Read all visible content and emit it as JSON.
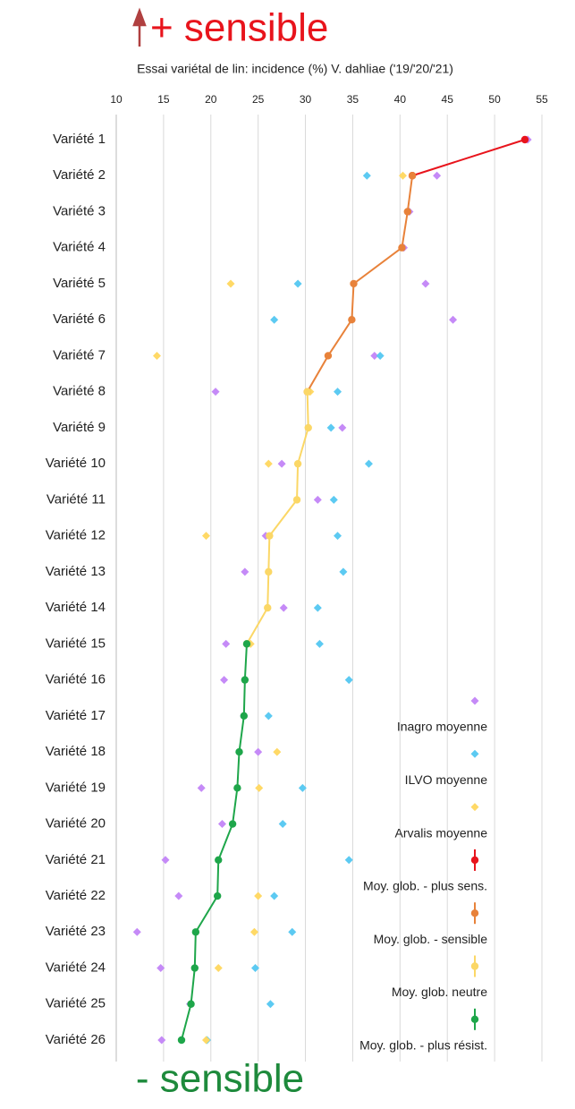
{
  "chart_data": {
    "type": "dot",
    "title_top": "+ sensible",
    "title": "Essai variétal de lin: incidence (%) V. dahliae ('19/'20/'21)",
    "title_bottom": "- sensible",
    "categories": [
      "Variété 1",
      "Variété 2",
      "Variété 3",
      "Variété 4",
      "Variété 5",
      "Variété 6",
      "Variété 7",
      "Variété 8",
      "Variété 9",
      "Variété 10",
      "Variété 11",
      "Variété 12",
      "Variété 13",
      "Variété 14",
      "Variété 15",
      "Variété 16",
      "Variété 17",
      "Variété 18",
      "Variété 19",
      "Variété 20",
      "Variété 21",
      "Variété 22",
      "Variété 23",
      "Variété 24",
      "Variété 25",
      "Variété 26"
    ],
    "xlim": [
      10,
      55
    ],
    "xticks": [
      10,
      15,
      20,
      25,
      30,
      35,
      40,
      45,
      50,
      55
    ],
    "grid": true,
    "series": [
      {
        "name": "Inagro moyenne",
        "marker": "diamond",
        "color": "#c58af7",
        "values": [
          53.5,
          43.9,
          41.0,
          40.4,
          42.7,
          45.6,
          37.3,
          20.5,
          33.9,
          27.5,
          31.3,
          25.8,
          23.6,
          27.7,
          21.6,
          21.4,
          23.5,
          25.0,
          19.0,
          21.2,
          15.2,
          16.6,
          12.2,
          14.7,
          17.8,
          14.8
        ]
      },
      {
        "name": "ILVO moyenne",
        "marker": "diamond",
        "color": "#5ccaf2",
        "values": [
          null,
          36.5,
          null,
          null,
          29.2,
          26.7,
          37.9,
          33.4,
          32.7,
          36.7,
          33.0,
          33.4,
          34.0,
          31.3,
          31.5,
          34.6,
          26.1,
          null,
          29.7,
          27.6,
          34.6,
          26.7,
          28.6,
          24.7,
          26.3,
          19.6
        ]
      },
      {
        "name": "Arvalis moyenne",
        "marker": "diamond",
        "color": "#ffd966",
        "values": [
          null,
          40.3,
          null,
          null,
          22.1,
          null,
          14.3,
          30.5,
          null,
          26.1,
          null,
          19.5,
          null,
          null,
          24.2,
          null,
          null,
          27.0,
          25.1,
          null,
          null,
          25.0,
          24.6,
          20.8,
          null,
          19.5
        ]
      },
      {
        "name": "Moy. glob. - plus sens.",
        "marker": "line",
        "color": "#e8141c",
        "values": [
          53.2,
          41.3,
          null,
          null,
          null,
          null,
          null,
          null,
          null,
          null,
          null,
          null,
          null,
          null,
          null,
          null,
          null,
          null,
          null,
          null,
          null,
          null,
          null,
          null,
          null,
          null
        ]
      },
      {
        "name": "Moy. glob. - sensible",
        "marker": "line",
        "color": "#e8823a",
        "values": [
          null,
          41.3,
          40.8,
          40.2,
          35.1,
          34.9,
          32.4,
          30.2,
          null,
          null,
          null,
          null,
          null,
          null,
          null,
          null,
          null,
          null,
          null,
          null,
          null,
          null,
          null,
          null,
          null,
          null
        ]
      },
      {
        "name": "Moy. glob. neutre",
        "marker": "line",
        "color": "#fbd766",
        "values": [
          null,
          null,
          null,
          null,
          null,
          null,
          null,
          30.2,
          30.3,
          29.2,
          29.1,
          26.2,
          26.1,
          26.0,
          23.8,
          null,
          null,
          null,
          null,
          null,
          null,
          null,
          null,
          null,
          null,
          null
        ]
      },
      {
        "name": "Moy. glob. - plus résist.",
        "marker": "line",
        "color": "#1ea64a",
        "values": [
          null,
          null,
          null,
          null,
          null,
          null,
          null,
          null,
          null,
          null,
          null,
          null,
          null,
          null,
          23.8,
          23.6,
          23.5,
          23.0,
          22.8,
          22.3,
          20.8,
          20.7,
          18.4,
          18.3,
          17.9,
          16.9
        ]
      }
    ]
  }
}
